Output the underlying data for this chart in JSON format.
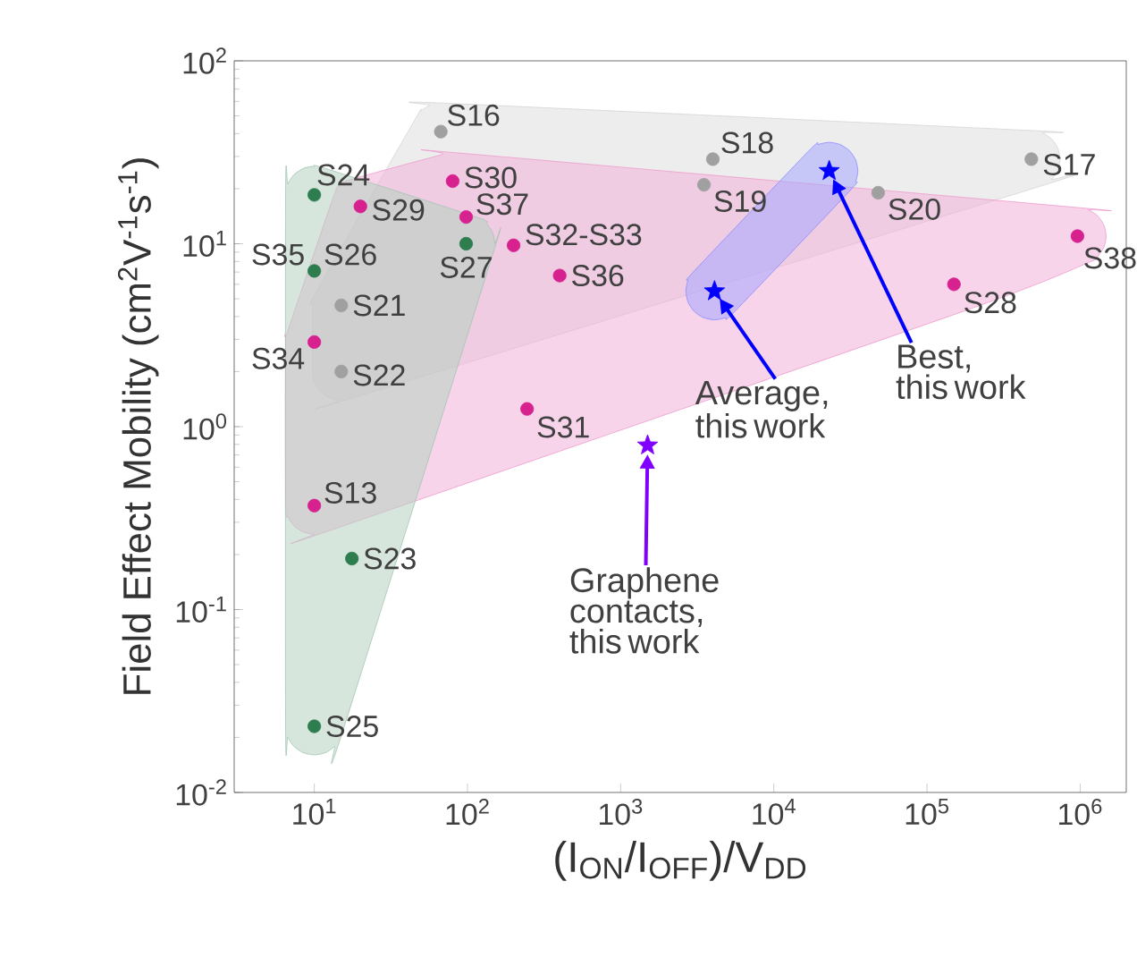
{
  "chart_data": {
    "type": "scatter",
    "xlabel": "(I$_{ON}$/I$_{OFF}$)/V$_{DD}$",
    "ylabel": "Field Effect Mobility (cm$^{2}$V$^{-1}$s$^{-1}$)",
    "log": "xy",
    "grid": false,
    "xlim": [
      3,
      2000000
    ],
    "ylim": [
      0.01,
      100
    ],
    "xticks": [
      {
        "value": 10,
        "label": "10$^{1}$"
      },
      {
        "value": 100,
        "label": "10$^{2}$"
      },
      {
        "value": 1000,
        "label": "10$^{3}$"
      },
      {
        "value": 10000,
        "label": "10$^{4}$"
      },
      {
        "value": 100000,
        "label": "10$^{5}$"
      },
      {
        "value": 1000000,
        "label": "10$^{6}$"
      }
    ],
    "yticks": [
      {
        "value": 0.01,
        "label": "10$^{-2}$"
      },
      {
        "value": 0.1,
        "label": "10$^{-1}$"
      },
      {
        "value": 1,
        "label": "10$^{0}$"
      },
      {
        "value": 10,
        "label": "10$^{1}$"
      },
      {
        "value": 100,
        "label": "10$^{2}$"
      }
    ],
    "series": [
      {
        "color": "#a0a0a0",
        "marker": "circle",
        "x": [
          67,
          15,
          15,
          4000,
          3500,
          48000,
          480000
        ],
        "values": [
          41,
          4.6,
          2.0,
          29,
          21,
          19,
          29
        ]
      },
      {
        "color": "#d6218f",
        "marker": "circle",
        "x": [
          20,
          80,
          98,
          200,
          10,
          245,
          400,
          10,
          960000,
          150000
        ],
        "values": [
          16,
          22,
          14,
          9.8,
          2.9,
          1.25,
          6.7,
          0.37,
          11,
          6.0
        ]
      },
      {
        "color": "#2e7d4f",
        "marker": "circle",
        "x": [
          10,
          10,
          98,
          17.6,
          10
        ],
        "values": [
          18.5,
          7.1,
          10,
          0.19,
          0.023
        ]
      },
      {
        "color": "#0000ff",
        "marker": "star",
        "x": [
          23000,
          4100
        ],
        "values": [
          25,
          5.5
        ]
      },
      {
        "color": "#7f00ff",
        "marker": "star",
        "x": [
          1500
        ],
        "values": [
          0.79
        ]
      }
    ],
    "annotations": [
      {
        "text": "S16",
        "x": 67,
        "y": 41
      },
      {
        "text": "S24",
        "x": 10,
        "y": 18.5
      },
      {
        "text": "S29",
        "x": 20,
        "y": 16
      },
      {
        "text": "S30",
        "x": 80,
        "y": 22
      },
      {
        "text": "S37",
        "x": 98,
        "y": 14
      },
      {
        "text": "S27",
        "x": 98,
        "y": 10
      },
      {
        "text": "S32-S33",
        "x": 200,
        "y": 9.8
      },
      {
        "text": "S35",
        "x": 10,
        "y": 7.1
      },
      {
        "text": "S26",
        "x": 10,
        "y": 7.1
      },
      {
        "text": "S21",
        "x": 15,
        "y": 4.6
      },
      {
        "text": "S34",
        "x": 10,
        "y": 2.9
      },
      {
        "text": "S22",
        "x": 15,
        "y": 2.0
      },
      {
        "text": "S31",
        "x": 245,
        "y": 1.25
      },
      {
        "text": "S36",
        "x": 400,
        "y": 6.7
      },
      {
        "text": "S18",
        "x": 4000,
        "y": 29
      },
      {
        "text": "S19",
        "x": 3500,
        "y": 21
      },
      {
        "text": "S20",
        "x": 48000,
        "y": 19
      },
      {
        "text": "S17",
        "x": 480000,
        "y": 29
      },
      {
        "text": "S38",
        "x": 960000,
        "y": 11
      },
      {
        "text": "S28",
        "x": 150000,
        "y": 6.0
      },
      {
        "text": "S13",
        "x": 10,
        "y": 0.37
      },
      {
        "text": "S23",
        "x": 17.6,
        "y": 0.19
      },
      {
        "text": "S25",
        "x": 10,
        "y": 0.023
      },
      {
        "text": "Average, this work",
        "x": 4100,
        "y": 5.5
      },
      "Best, this work",
      "Graphene contacts, this work"
    ]
  }
}
